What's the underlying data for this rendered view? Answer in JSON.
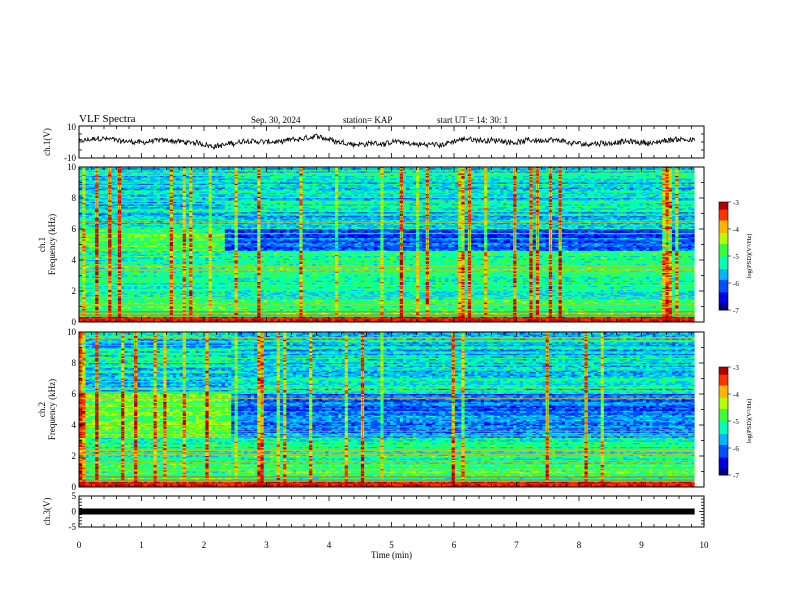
{
  "header": {
    "title": "VLF Spectra",
    "date": "Sep. 30, 2024",
    "station": "station= KAP",
    "start": "start  UT =   14: 30: 1"
  },
  "colors": {
    "spectrum_palette": [
      "#00008c",
      "#0000e6",
      "#0050ff",
      "#00b4ff",
      "#00ffb4",
      "#3cff3c",
      "#b4ff00",
      "#ffb400",
      "#ff3200",
      "#b40000"
    ],
    "trace": "#000000"
  },
  "chart_data": [
    {
      "type": "line",
      "panel": "ch1-waveform",
      "ylabel": "ch.1(V)",
      "ylim": [
        -10,
        10
      ],
      "yticks": [
        "10",
        "-10"
      ],
      "xlim": [
        0,
        10
      ],
      "x_end": 9.85,
      "description_values": "noisy waveform oscillating roughly between -4 and 4 V"
    },
    {
      "type": "heatmap",
      "panel": "ch1-spectrogram",
      "ylabel": "ch.1\nFrequency  (kHz)",
      "ylabel_lines": [
        "ch.1",
        "Frequency  (kHz)"
      ],
      "ylim": [
        0,
        10
      ],
      "yticks": [
        "0",
        "2",
        "4",
        "6",
        "8",
        "10"
      ],
      "xlim": [
        0,
        10
      ],
      "x_end": 9.85,
      "colorbar": {
        "label": "log(PSD)(V²/Hz)",
        "range": [
          -7,
          -3
        ],
        "ticks": [
          "-3",
          "-4",
          "-5",
          "-6",
          "-7"
        ]
      },
      "transition_time": 2.3
    },
    {
      "type": "heatmap",
      "panel": "ch2-spectrogram",
      "ylabel_lines": [
        "ch.2",
        "Frequency  (kHz)"
      ],
      "ylim": [
        0,
        10
      ],
      "yticks": [
        "0",
        "2",
        "4",
        "6",
        "8",
        "10"
      ],
      "xlim": [
        0,
        10
      ],
      "x_end": 9.85,
      "colorbar": {
        "label": "log(PSD)(V²/Hz)",
        "range": [
          -7,
          -3
        ],
        "ticks": [
          "-3",
          "-4",
          "-5",
          "-6",
          "-7"
        ]
      },
      "transition_time": 2.4
    },
    {
      "type": "line",
      "panel": "ch3-waveform",
      "ylabel": "ch.3(V)",
      "ylim": [
        -5,
        5
      ],
      "yticks": [
        "5",
        "0",
        "-5"
      ],
      "xlim": [
        0,
        10
      ],
      "x_end": 9.85,
      "xlabel": "Time  (min)",
      "xticks": [
        "0",
        "1",
        "2",
        "3",
        "4",
        "5",
        "6",
        "7",
        "8",
        "9",
        "10"
      ],
      "description_values": "flat near 0 V"
    }
  ]
}
